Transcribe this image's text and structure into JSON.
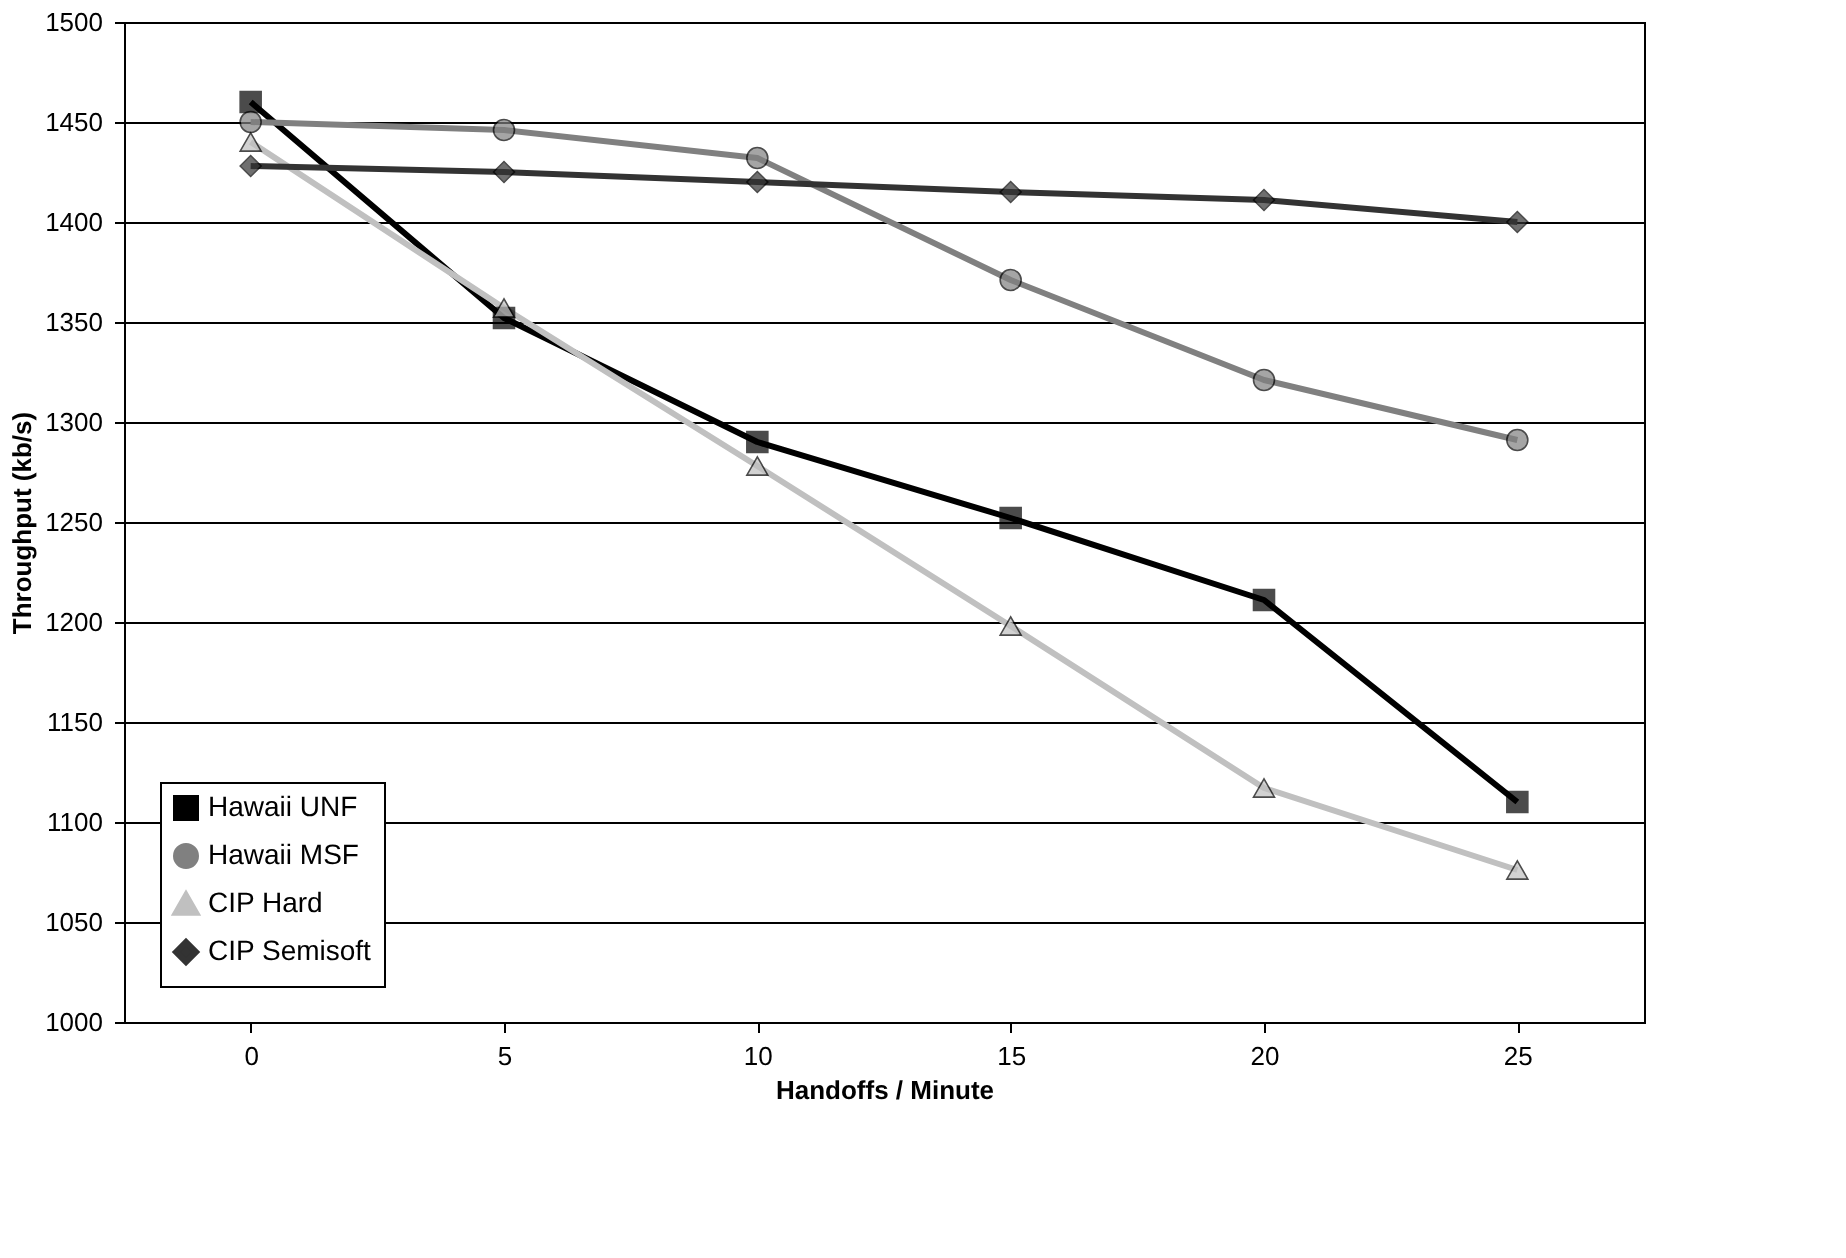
{
  "chart_data": {
    "type": "line",
    "xlabel": "Handoffs / Minute",
    "ylabel": "Throughput (kb/s)",
    "categories": [
      "0",
      "5",
      "10",
      "15",
      "20",
      "25"
    ],
    "series": [
      {
        "name": "Hawaii UNF",
        "color": "#000000",
        "marker": "square",
        "values": [
          1460,
          1352,
          1290,
          1252,
          1211,
          1110
        ]
      },
      {
        "name": "Hawaii MSF",
        "color": "#808080",
        "marker": "circle",
        "values": [
          1450,
          1446,
          1432,
          1371,
          1321,
          1291
        ]
      },
      {
        "name": "CIP Hard",
        "color": "#c0c0c0",
        "marker": "triangle",
        "values": [
          1440,
          1357,
          1278,
          1198,
          1117,
          1076
        ]
      },
      {
        "name": "CIP Semisoft",
        "color": "#333333",
        "marker": "diamond",
        "values": [
          1428,
          1425,
          1420,
          1415,
          1411,
          1400
        ]
      }
    ],
    "ylim": [
      1000,
      1500
    ],
    "yticks": [
      1000,
      1050,
      1100,
      1150,
      1200,
      1250,
      1300,
      1350,
      1400,
      1450,
      1500
    ],
    "grid": "y",
    "legend": "bottom left"
  }
}
